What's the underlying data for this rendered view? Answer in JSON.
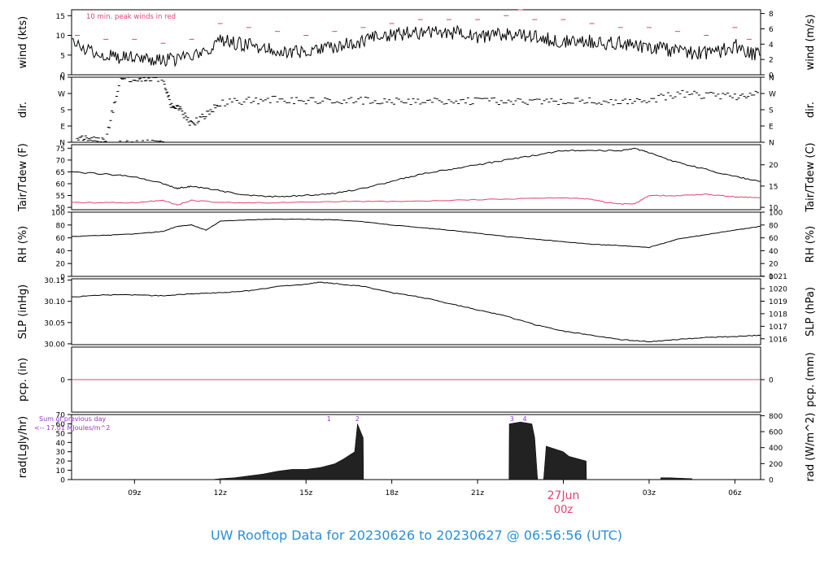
{
  "figure_title": "UW Rooftop Data for 20230626  to  20230627 @ 06:56:56  (UTC)",
  "colors": {
    "title": "#2a8fd6",
    "red": "#e0456e",
    "purple": "#9933cc",
    "black": "#000000"
  },
  "x_axis": {
    "range_hours": [
      6.8,
      30.9
    ],
    "ticks": [
      {
        "hour": 9,
        "label": "09z"
      },
      {
        "hour": 12,
        "label": "12z"
      },
      {
        "hour": 15,
        "label": "15z"
      },
      {
        "hour": 18,
        "label": "18z"
      },
      {
        "hour": 21,
        "label": "21z"
      },
      {
        "hour": 24,
        "label": "00z"
      },
      {
        "hour": 27,
        "label": "03z"
      },
      {
        "hour": 30,
        "label": "06z"
      }
    ],
    "day_marker": {
      "hour": 24,
      "date_label": "27Jun",
      "time_label": "00z"
    }
  },
  "chart_data": [
    {
      "type": "line",
      "panel": "wind",
      "ylabel_left": "wind (kts)",
      "ylabel_right": "wind (m/s)",
      "ylim": [
        0,
        16.5
      ],
      "yticks_left": [
        0,
        5,
        10,
        15
      ],
      "yticks_right": [
        {
          "v": 0,
          "label": "0"
        },
        {
          "v": 3.89,
          "label": "2"
        },
        {
          "v": 7.78,
          "label": "4"
        },
        {
          "v": 11.66,
          "label": "6"
        },
        {
          "v": 15.55,
          "label": "8"
        }
      ],
      "annotation": "10 min. peak winds in red",
      "series": [
        {
          "name": "wind",
          "x": [
            6.8,
            7.5,
            8,
            8.5,
            9,
            9.5,
            10,
            10.5,
            11,
            11.5,
            12,
            12.5,
            13,
            13.5,
            14,
            14.5,
            15,
            15.5,
            16,
            16.5,
            17,
            17.5,
            18,
            18.5,
            19,
            19.5,
            20,
            20.5,
            21,
            21.5,
            22,
            22.5,
            23,
            23.5,
            24,
            24.5,
            25,
            25.5,
            26,
            26.5,
            27,
            27.5,
            28,
            28.5,
            29,
            29.5,
            30,
            30.5,
            30.9
          ],
          "values": [
            8,
            6,
            5,
            4.5,
            5,
            4,
            3.5,
            4,
            4.5,
            5.5,
            9,
            8,
            7.5,
            7,
            6.5,
            5.5,
            6,
            6.5,
            7,
            8,
            8.5,
            9.5,
            10,
            10.5,
            10.5,
            11,
            10.5,
            11,
            9.5,
            10,
            10.5,
            10,
            10,
            9,
            8.5,
            9,
            8.5,
            8,
            8,
            7.5,
            7,
            6.5,
            6,
            5.5,
            5.5,
            6,
            7.5,
            5.5,
            5
          ]
        },
        {
          "name": "10 min. peak winds",
          "x": [
            7,
            8,
            9,
            10,
            11,
            12,
            13,
            14,
            15,
            16,
            17,
            18,
            19,
            20,
            21,
            22,
            22.5,
            23,
            24,
            25,
            26,
            27,
            28,
            29,
            30,
            30.5
          ],
          "values": [
            10,
            9,
            9,
            8,
            9,
            13,
            12,
            11,
            10,
            11,
            12,
            13,
            14,
            14,
            14,
            15,
            16.5,
            14,
            14,
            13,
            12,
            12,
            11,
            10,
            12,
            9
          ]
        }
      ]
    },
    {
      "type": "scatter",
      "panel": "direction",
      "ylabel_left": "dir.",
      "ylabel_right": "dir.",
      "ylim": [
        0,
        360
      ],
      "yticks": [
        {
          "v": 0,
          "label": "N"
        },
        {
          "v": 90,
          "label": "E"
        },
        {
          "v": 180,
          "label": "S"
        },
        {
          "v": 270,
          "label": "W"
        },
        {
          "v": 360,
          "label": "N"
        }
      ],
      "series": [
        {
          "name": "direction",
          "x": [
            7,
            7.5,
            8,
            8.5,
            9,
            9.5,
            10,
            10.3,
            10.6,
            11,
            11.5,
            12,
            13,
            14,
            15,
            16,
            17,
            18,
            19,
            20,
            21,
            22,
            23,
            24,
            25,
            26,
            27,
            28,
            29,
            30,
            30.8
          ],
          "values": [
            30,
            20,
            10,
            355,
            350,
            355,
            350,
            200,
            180,
            100,
            150,
            220,
            230,
            235,
            230,
            225,
            230,
            225,
            225,
            230,
            225,
            230,
            225,
            225,
            230,
            220,
            230,
            270,
            260,
            250,
            275
          ]
        }
      ]
    },
    {
      "type": "line",
      "panel": "temperature",
      "ylabel_left": "Tair/Tdew (F)",
      "ylabel_right": "Tair/Tdew (C)",
      "ylim": [
        49,
        76.5
      ],
      "yticks_left": [
        50,
        55,
        60,
        65,
        70,
        75
      ],
      "yticks_right": [
        {
          "v": 50,
          "label": "10"
        },
        {
          "v": 59,
          "label": "15"
        },
        {
          "v": 68,
          "label": "20"
        }
      ],
      "series": [
        {
          "name": "Tair",
          "x": [
            6.8,
            8,
            9,
            10,
            10.5,
            11,
            12,
            13,
            14,
            15,
            16,
            17,
            18,
            19,
            20,
            21,
            22,
            23,
            24,
            25,
            26,
            26.5,
            27,
            28,
            29,
            30,
            30.9
          ],
          "values": [
            65,
            64,
            63,
            60,
            58,
            59,
            57,
            55,
            54.5,
            55,
            56,
            58,
            61,
            64,
            66,
            68,
            70,
            72,
            74,
            74,
            74,
            75,
            73,
            69,
            66,
            63,
            61
          ]
        },
        {
          "name": "Tdew",
          "x": [
            6.8,
            8,
            9,
            10,
            10.5,
            11,
            12,
            14,
            16,
            18,
            20,
            22,
            24,
            25,
            25.5,
            26,
            26.5,
            27,
            28,
            29,
            30,
            30.9
          ],
          "values": [
            52,
            52,
            52,
            53,
            51,
            53,
            52,
            52,
            52.5,
            52.5,
            53,
            53.5,
            54,
            53.5,
            52,
            51.5,
            51.5,
            55,
            55,
            55.5,
            54.5,
            54
          ]
        }
      ]
    },
    {
      "type": "line",
      "panel": "humidity",
      "ylabel_left": "RH (%)",
      "ylabel_right": "RH (%)",
      "ylim": [
        0,
        100
      ],
      "yticks": [
        0,
        20,
        40,
        60,
        80,
        100
      ],
      "series": [
        {
          "name": "RH",
          "x": [
            6.8,
            8,
            9,
            10,
            10.5,
            11,
            11.5,
            12,
            13,
            14,
            15,
            16,
            17,
            18,
            19,
            20,
            21,
            22,
            23,
            24,
            25,
            26,
            27,
            28,
            29,
            30,
            30.9
          ],
          "values": [
            62,
            64,
            66,
            70,
            78,
            80,
            72,
            86,
            88,
            89,
            89,
            88,
            85,
            80,
            76,
            72,
            67,
            62,
            58,
            54,
            50,
            48,
            45,
            58,
            65,
            72,
            78
          ]
        }
      ]
    },
    {
      "type": "line",
      "panel": "pressure",
      "ylabel_left": "SLP (inHg)",
      "ylabel_right": "SLP (hPa)",
      "ylim": [
        29.998,
        30.153
      ],
      "yticks_left": [
        {
          "v": 30.0,
          "label": "30.00"
        },
        {
          "v": 30.05,
          "label": "30.05"
        },
        {
          "v": 30.1,
          "label": "30.10"
        },
        {
          "v": 30.15,
          "label": "30.15"
        }
      ],
      "yticks_right": [
        {
          "v": 30.0118,
          "label": "1016"
        },
        {
          "v": 30.0413,
          "label": "1017"
        },
        {
          "v": 30.0709,
          "label": "1018"
        },
        {
          "v": 30.1004,
          "label": "1019"
        },
        {
          "v": 30.1299,
          "label": "1020"
        },
        {
          "v": 30.1594,
          "label": "1021"
        }
      ],
      "series": [
        {
          "name": "SLP",
          "x": [
            6.8,
            8,
            9,
            10,
            11,
            12,
            13,
            14,
            15,
            15.5,
            16,
            17,
            18,
            19,
            20,
            21,
            22,
            23,
            24,
            25,
            26,
            27,
            28,
            29,
            30,
            30.9
          ],
          "values": [
            30.11,
            30.115,
            30.115,
            30.113,
            30.118,
            30.12,
            30.125,
            30.135,
            30.14,
            30.145,
            30.142,
            30.135,
            30.12,
            30.11,
            30.095,
            30.08,
            30.065,
            30.045,
            30.03,
            30.02,
            30.01,
            30.005,
            30.01,
            30.015,
            30.017,
            30.02
          ]
        }
      ]
    },
    {
      "type": "line",
      "panel": "precipitation",
      "ylabel_left": "pcp. (in)",
      "ylabel_right": "pcp. (mm)",
      "ylim": [
        -1,
        1
      ],
      "yticks_left": [
        {
          "v": 0,
          "label": "0"
        }
      ],
      "yticks_right": [
        {
          "v": 0,
          "label": "0"
        }
      ],
      "series": [
        {
          "name": "precipitation",
          "x": [
            6.8,
            30.9
          ],
          "values": [
            0,
            0
          ]
        }
      ]
    },
    {
      "type": "area",
      "panel": "radiation",
      "ylabel_left": "rad(Lgly/hr)",
      "ylabel_right": "rad (W/m^2)",
      "ylim": [
        0,
        70
      ],
      "yticks_left": [
        0,
        10,
        20,
        30,
        40,
        50,
        60,
        70
      ],
      "yticks_right": [
        {
          "v": 0,
          "label": "0"
        },
        {
          "v": 17.2,
          "label": "200"
        },
        {
          "v": 34.4,
          "label": "400"
        },
        {
          "v": 51.6,
          "label": "600"
        },
        {
          "v": 68.8,
          "label": "800"
        }
      ],
      "annotation_line1": "Sum of previous day",
      "annotation_line2": "<-- 17.01 MJoules/m^2",
      "markers": [
        {
          "hour": 15.8,
          "label": "1"
        },
        {
          "hour": 16.8,
          "label": "2"
        },
        {
          "hour": 22.2,
          "label": "3"
        },
        {
          "hour": 22.65,
          "label": "4"
        }
      ],
      "series": [
        {
          "name": "radiation",
          "x": [
            11.7,
            12,
            12.5,
            13,
            13.5,
            14,
            14.5,
            15,
            15.5,
            16,
            16.3,
            16.7,
            16.8,
            17,
            17.01,
            22.1,
            22.11,
            22.5,
            22.9,
            23,
            23.1,
            23.3,
            23.31,
            23.4,
            23.8,
            24,
            24.2,
            24.8,
            24.81,
            27.4,
            27.41,
            27.7,
            28.5,
            28.51
          ],
          "values": [
            0,
            1,
            2,
            4,
            6,
            9,
            11,
            11,
            13,
            17,
            22,
            30,
            60,
            45,
            0,
            0,
            60,
            62,
            60,
            45,
            0,
            0,
            0,
            36,
            32,
            30,
            25,
            20,
            0,
            0,
            2,
            2,
            1,
            0
          ]
        }
      ]
    }
  ]
}
